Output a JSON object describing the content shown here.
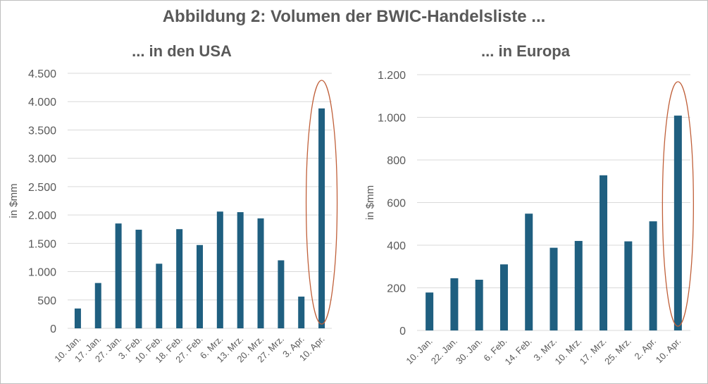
{
  "title": "Abbildung 2: Volumen der BWIC-Handelsliste  ...",
  "colors": {
    "bar": "#1f5f80",
    "grid": "#d9d9d9",
    "axis_text": "#595959",
    "highlight": "#c0603a"
  },
  "chart_data": [
    {
      "type": "bar",
      "title": "... in den USA",
      "ylabel": "in $mm",
      "xlabel": "",
      "ylim": [
        0,
        4500
      ],
      "yticks": [
        0,
        500,
        1000,
        1500,
        2000,
        2500,
        3000,
        3500,
        4000,
        4500
      ],
      "ytick_labels": [
        "0",
        "500",
        "1.000",
        "1.500",
        "2.000",
        "2.500",
        "3.000",
        "3.500",
        "4.000",
        "4.500"
      ],
      "categories": [
        "10. Jan.",
        "17. Jan.",
        "27. Jan.",
        "3. Feb.",
        "10. Feb.",
        "18. Feb.",
        "27. Feb.",
        "6. Mrz.",
        "13. Mrz.",
        "20. Mrz.",
        "27. Mrz.",
        "3. Apr.",
        "10. Apr."
      ],
      "values": [
        350,
        800,
        1850,
        1740,
        1140,
        1750,
        1470,
        2060,
        2050,
        1940,
        1200,
        560,
        3880
      ],
      "highlight": "10. Apr.",
      "grid": true
    },
    {
      "type": "bar",
      "title": "... in Europa",
      "ylabel": "in $mm",
      "xlabel": "",
      "ylim": [
        0,
        1200
      ],
      "yticks": [
        0,
        200,
        400,
        600,
        800,
        1000,
        1200
      ],
      "ytick_labels": [
        "0",
        "200",
        "400",
        "600",
        "800",
        "1.000",
        "1.200"
      ],
      "categories": [
        "10. Jan.",
        "22. Jan.",
        "30. Jan.",
        "6. Feb.",
        "14. Feb.",
        "3. Mrz.",
        "10. Mrz.",
        "17. Mrz.",
        "25. Mrz.",
        "2. Apr.",
        "10. Apr."
      ],
      "values": [
        178,
        245,
        238,
        310,
        548,
        388,
        420,
        728,
        418,
        512,
        1008
      ],
      "highlight": "10. Apr.",
      "grid": true
    }
  ]
}
